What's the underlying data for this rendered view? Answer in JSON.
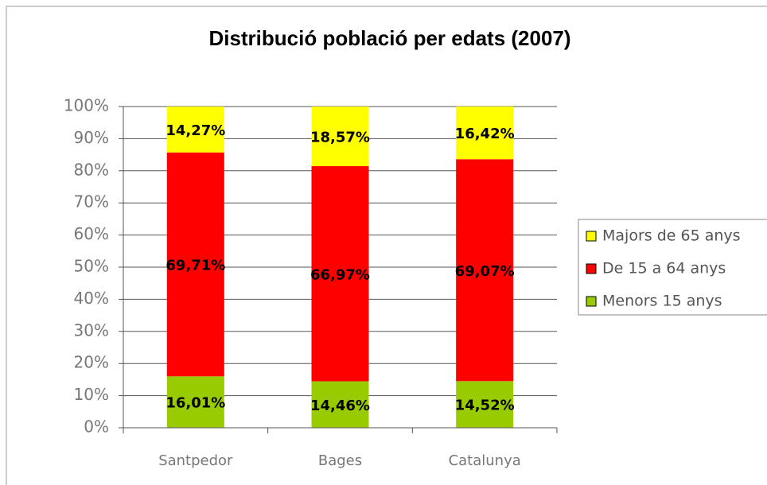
{
  "chart_data": {
    "type": "stacked_bar",
    "title": "Distribució població per edats (2007)",
    "categories": [
      "Santpedor",
      "Bages",
      "Catalunya"
    ],
    "series": [
      {
        "name": "Menors 15 anys",
        "color": "#99cc00",
        "values": [
          16.01,
          14.46,
          14.52
        ],
        "value_labels": [
          "16,01%",
          "14,46%",
          "14,52%"
        ]
      },
      {
        "name": "De 15 a 64 anys",
        "color": "#ff0000",
        "values": [
          69.71,
          66.97,
          69.07
        ],
        "value_labels": [
          "69,71%",
          "66,97%",
          "69,07%"
        ]
      },
      {
        "name": "Majors de 65 anys",
        "color": "#ffff00",
        "values": [
          14.27,
          18.57,
          16.42
        ],
        "value_labels": [
          "14,27%",
          "18,57%",
          "16,42%"
        ]
      }
    ],
    "ylim": [
      0,
      100
    ],
    "yticks": [
      {
        "value": 0,
        "label": "0%"
      },
      {
        "value": 10,
        "label": "10%"
      },
      {
        "value": 20,
        "label": "20%"
      },
      {
        "value": 30,
        "label": "30%"
      },
      {
        "value": 40,
        "label": "40%"
      },
      {
        "value": 50,
        "label": "50%"
      },
      {
        "value": 60,
        "label": "60%"
      },
      {
        "value": 70,
        "label": "70%"
      },
      {
        "value": 80,
        "label": "80%"
      },
      {
        "value": 90,
        "label": "90%"
      },
      {
        "value": 100,
        "label": "100%"
      }
    ],
    "grid": true,
    "legend": "right"
  }
}
